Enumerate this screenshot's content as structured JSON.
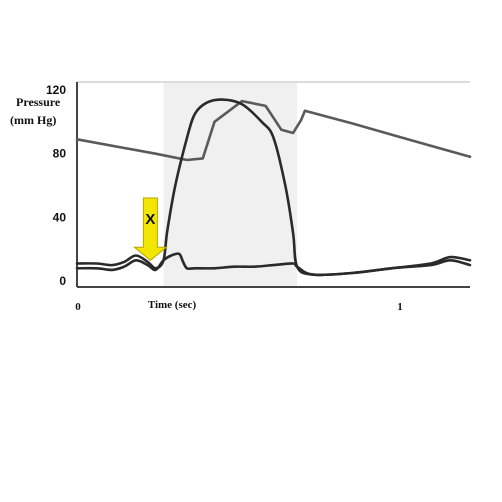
{
  "chart_data": {
    "type": "line",
    "ylabel_lines": [
      "Pressure",
      "(mm Hg)"
    ],
    "xlabel": "Time (sec)",
    "ylim": [
      0,
      120
    ],
    "xlim": [
      0,
      1
    ],
    "yticks": [
      "0",
      "40",
      "80",
      "120"
    ],
    "xticks": [
      "0",
      "1"
    ],
    "shaded_interval": [
      0.22,
      0.56
    ],
    "marker": {
      "label": "X",
      "x": 0.23,
      "y": 13,
      "color": "#f2e600"
    },
    "series": [
      {
        "color": "#5a5a5a",
        "x": [
          0,
          0.2,
          0.28,
          0.32,
          0.35,
          0.42,
          0.48,
          0.52,
          0.55,
          0.57,
          0.58,
          0.7,
          0.8,
          0.9,
          1.0
        ],
        "y": [
          89,
          80,
          76,
          77,
          100,
          113,
          110,
          95,
          93,
          101,
          107,
          99,
          92,
          85,
          78
        ]
      },
      {
        "color": "#2a2a2a",
        "x": [
          0,
          0.05,
          0.09,
          0.12,
          0.15,
          0.18,
          0.2,
          0.22,
          0.23,
          0.25,
          0.28,
          0.3,
          0.33,
          0.37,
          0.42,
          0.47,
          0.5,
          0.53,
          0.55,
          0.56,
          0.6,
          0.7,
          0.8,
          0.9,
          0.95,
          1.0
        ],
        "y": [
          11,
          11,
          10,
          12,
          16,
          12,
          8,
          13,
          32,
          60,
          90,
          105,
          112,
          114,
          111,
          100,
          90,
          60,
          30,
          9,
          4,
          5,
          8,
          11,
          15,
          13
        ]
      },
      {
        "color": "#2a2a2a",
        "x": [
          0,
          0.05,
          0.09,
          0.12,
          0.15,
          0.18,
          0.2,
          0.22,
          0.24,
          0.26,
          0.27,
          0.28,
          0.3,
          0.35,
          0.4,
          0.45,
          0.5,
          0.55,
          0.56,
          0.6,
          0.7,
          0.8,
          0.9,
          0.95,
          1.0
        ],
        "y": [
          8,
          8,
          7,
          9,
          13,
          10,
          7,
          13,
          16,
          17,
          12,
          8,
          8,
          8,
          9,
          9,
          10,
          11,
          9,
          4,
          5,
          8,
          10,
          13,
          10
        ]
      }
    ]
  }
}
